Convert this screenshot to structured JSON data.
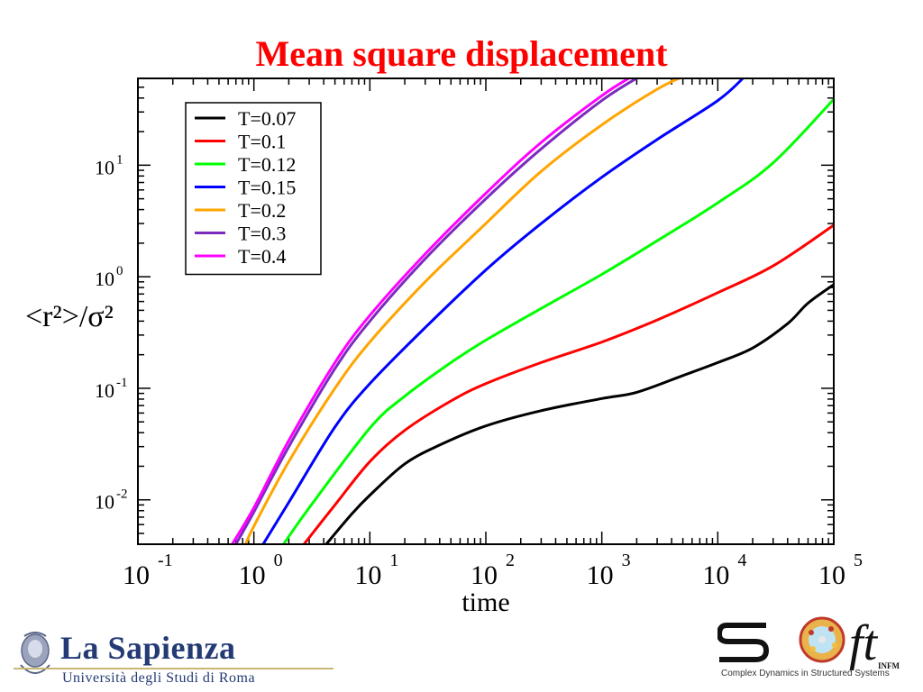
{
  "slide": {
    "title": "Mean square displacement"
  },
  "chart_data": {
    "type": "line",
    "title": "Mean square displacement",
    "xlabel": "time",
    "ylabel": "<r²>/σ²",
    "xscale": "log",
    "yscale": "log",
    "xlim": [
      0.1,
      100000
    ],
    "ylim": [
      0.004,
      60
    ],
    "xticks": [
      {
        "label": "10",
        "exp": "-1"
      },
      {
        "label": "10",
        "exp": "0"
      },
      {
        "label": "10",
        "exp": "1"
      },
      {
        "label": "10",
        "exp": "2"
      },
      {
        "label": "10",
        "exp": "3"
      },
      {
        "label": "10",
        "exp": "4"
      },
      {
        "label": "10",
        "exp": "5"
      }
    ],
    "yticks": [
      {
        "label": "10",
        "exp": "-2"
      },
      {
        "label": "10",
        "exp": "-1"
      },
      {
        "label": "10",
        "exp": "0"
      },
      {
        "label": "10",
        "exp": "1"
      }
    ],
    "grid": false,
    "legend_position": "top-left",
    "series": [
      {
        "name": "T=0.07",
        "color": "#000000",
        "x": [
          4.2,
          7,
          10,
          20,
          40,
          100,
          300,
          1000,
          2000,
          5000,
          10000,
          20000,
          40000,
          60000,
          100000
        ],
        "y": [
          0.004,
          0.0075,
          0.011,
          0.021,
          0.031,
          0.046,
          0.063,
          0.081,
          0.092,
          0.13,
          0.17,
          0.23,
          0.38,
          0.58,
          0.85
        ]
      },
      {
        "name": "T=0.1",
        "color": "#ff0000",
        "x": [
          2.7,
          5,
          10,
          20,
          50,
          100,
          300,
          1000,
          3000,
          10000,
          30000,
          100000
        ],
        "y": [
          0.004,
          0.009,
          0.022,
          0.042,
          0.077,
          0.11,
          0.17,
          0.26,
          0.41,
          0.72,
          1.25,
          2.9
        ]
      },
      {
        "name": "T=0.12",
        "color": "#00ff00",
        "x": [
          1.8,
          3,
          10,
          20,
          50,
          100,
          300,
          1000,
          3000,
          10000,
          30000,
          100000
        ],
        "y": [
          0.004,
          0.0085,
          0.044,
          0.085,
          0.17,
          0.27,
          0.52,
          1.05,
          2.1,
          4.6,
          10.5,
          39
        ]
      },
      {
        "name": "T=0.15",
        "color": "#0000ff",
        "x": [
          1.2,
          2,
          5,
          10,
          30,
          100,
          300,
          1000,
          3000,
          10000,
          17000
        ],
        "y": [
          0.004,
          0.0095,
          0.045,
          0.11,
          0.35,
          1.15,
          3.0,
          7.8,
          17,
          38,
          62
        ]
      },
      {
        "name": "T=0.2",
        "color": "#ffa500",
        "x": [
          0.85,
          1,
          2,
          5,
          10,
          30,
          100,
          300,
          1000,
          3000,
          5500
        ],
        "y": [
          0.004,
          0.0058,
          0.022,
          0.1,
          0.26,
          0.9,
          3.0,
          8.8,
          23,
          48,
          65
        ]
      },
      {
        "name": "T=0.3",
        "color": "#7b2cbf",
        "x": [
          0.7,
          1,
          2,
          5,
          10,
          30,
          100,
          300,
          1000,
          2100
        ],
        "y": [
          0.004,
          0.0078,
          0.03,
          0.15,
          0.4,
          1.45,
          5.0,
          14,
          38,
          62
        ]
      },
      {
        "name": "T=0.4",
        "color": "#ff00ff",
        "x": [
          0.65,
          1,
          2,
          5,
          10,
          30,
          100,
          300,
          1000,
          1800
        ],
        "y": [
          0.004,
          0.0085,
          0.034,
          0.17,
          0.45,
          1.6,
          5.6,
          16,
          42,
          62
        ]
      }
    ]
  },
  "logos": {
    "left_name": "La Sapienza",
    "left_subtitle": "Università degli Studi di Roma",
    "right_letters": "ft",
    "right_infm": "INFM",
    "right_tagline": "Complex Dynamics in Structured Systems"
  }
}
